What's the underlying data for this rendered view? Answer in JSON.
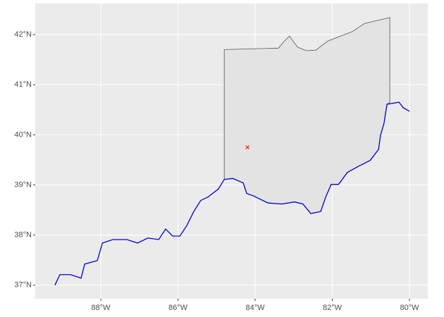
{
  "chart_data": {
    "type": "map",
    "xlim": [
      -89.7,
      -79.525
    ],
    "ylim": [
      36.73,
      42.62
    ],
    "xticks": [
      {
        "value": -88,
        "label": "88°W"
      },
      {
        "value": -86,
        "label": "86°W"
      },
      {
        "value": -84,
        "label": "84°W"
      },
      {
        "value": -82,
        "label": "82°W"
      },
      {
        "value": -80,
        "label": "80°W"
      }
    ],
    "yticks": [
      {
        "value": 37,
        "label": "37°N"
      },
      {
        "value": 38,
        "label": "38°N"
      },
      {
        "value": 39,
        "label": "39°N"
      },
      {
        "value": 40,
        "label": "40°N"
      },
      {
        "value": 41,
        "label": "41°N"
      },
      {
        "value": 42,
        "label": "42°N"
      }
    ],
    "grid": true,
    "polygon": {
      "fill": "#e3e3e3",
      "stroke": "#555555",
      "x": [
        -84.8,
        -83.4,
        -83.24,
        -83.11,
        -82.9,
        -82.68,
        -82.43,
        -82.12,
        -81.48,
        -81.17,
        -80.51,
        -80.51,
        -80.58,
        -80.62,
        -80.66,
        -80.75,
        -80.8,
        -81.02,
        -81.35,
        -81.61,
        -81.84,
        -82.03,
        -82.17,
        -82.3,
        -82.56,
        -82.76,
        -82.98,
        -83.31,
        -83.67,
        -84.04,
        -84.22,
        -84.31,
        -84.58,
        -84.8
      ],
      "y": [
        41.7,
        41.73,
        41.87,
        41.97,
        41.75,
        41.68,
        41.69,
        41.87,
        42.06,
        42.22,
        42.34,
        40.65,
        40.61,
        40.44,
        40.23,
        39.99,
        39.71,
        39.49,
        39.36,
        39.25,
        39.01,
        39.01,
        38.76,
        38.47,
        38.43,
        38.62,
        38.66,
        38.62,
        38.64,
        38.78,
        38.83,
        39.04,
        39.13,
        39.11
      ]
    },
    "line": {
      "color": "#0000cc",
      "x": [
        -80.0,
        -80.16,
        -80.27,
        -80.58,
        -80.62,
        -80.66,
        -80.75,
        -80.8,
        -81.02,
        -81.35,
        -81.61,
        -81.84,
        -82.03,
        -82.17,
        -82.3,
        -82.56,
        -82.76,
        -82.98,
        -83.31,
        -83.67,
        -84.04,
        -84.22,
        -84.31,
        -84.58,
        -84.8,
        -84.95,
        -85.22,
        -85.41,
        -85.59,
        -85.77,
        -85.95,
        -86.14,
        -86.32,
        -86.5,
        -86.78,
        -87.05,
        -87.32,
        -87.69,
        -87.96,
        -88.09,
        -88.42,
        -88.51,
        -88.79,
        -89.06,
        -89.19
      ],
      "y": [
        40.47,
        40.54,
        40.65,
        40.61,
        40.44,
        40.23,
        39.99,
        39.71,
        39.49,
        39.36,
        39.25,
        39.01,
        39.01,
        38.76,
        38.47,
        38.43,
        38.62,
        38.66,
        38.62,
        38.64,
        38.78,
        38.83,
        39.04,
        39.13,
        39.11,
        38.92,
        38.76,
        38.69,
        38.47,
        38.19,
        37.98,
        37.98,
        38.12,
        37.91,
        37.94,
        37.84,
        37.91,
        37.91,
        37.84,
        37.49,
        37.42,
        37.14,
        37.21,
        37.21,
        37.0
      ]
    },
    "points": {
      "color": "#ff0000",
      "x": [
        -84.2
      ],
      "y": [
        39.75
      ]
    }
  }
}
